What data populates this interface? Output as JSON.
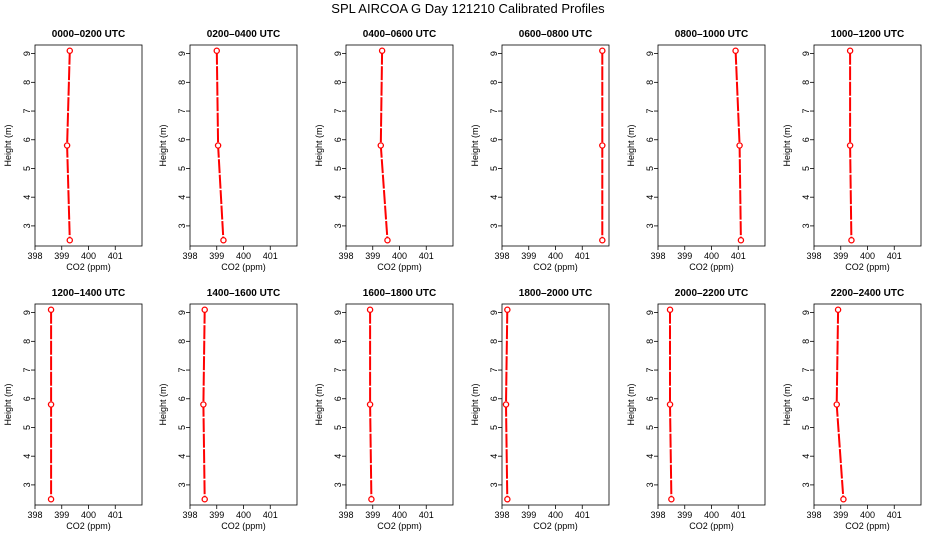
{
  "figure": {
    "title": "SPL AIRCOA G  Day 121210  Calibrated Profiles"
  },
  "chart_data": [
    {
      "type": "line",
      "title": "0000–0200 UTC",
      "xlabel": "CO2 (ppm)",
      "ylabel": "Height (m)",
      "xlim": [
        398,
        402
      ],
      "ylim": [
        2.3,
        9.3
      ],
      "x_ticks": [
        398,
        399,
        400,
        401
      ],
      "y_ticks": [
        3,
        4,
        5,
        6,
        7,
        8,
        9
      ],
      "grid": false,
      "series": [
        {
          "color": "#ff0000",
          "points": [
            {
              "x": 399.3,
              "y": 9.1
            },
            {
              "x": 399.2,
              "y": 5.8
            },
            {
              "x": 399.3,
              "y": 2.5
            }
          ]
        }
      ]
    },
    {
      "type": "line",
      "title": "0200–0400 UTC",
      "xlabel": "CO2 (ppm)",
      "ylabel": "Height (m)",
      "xlim": [
        398,
        402
      ],
      "ylim": [
        2.3,
        9.3
      ],
      "x_ticks": [
        398,
        399,
        400,
        401
      ],
      "y_ticks": [
        3,
        4,
        5,
        6,
        7,
        8,
        9
      ],
      "grid": false,
      "series": [
        {
          "color": "#ff0000",
          "points": [
            {
              "x": 399.0,
              "y": 9.1
            },
            {
              "x": 399.05,
              "y": 5.8
            },
            {
              "x": 399.25,
              "y": 2.5
            }
          ]
        }
      ]
    },
    {
      "type": "line",
      "title": "0400–0600 UTC",
      "xlabel": "CO2 (ppm)",
      "ylabel": "Height (m)",
      "xlim": [
        398,
        402
      ],
      "ylim": [
        2.3,
        9.3
      ],
      "x_ticks": [
        398,
        399,
        400,
        401
      ],
      "y_ticks": [
        3,
        4,
        5,
        6,
        7,
        8,
        9
      ],
      "grid": false,
      "series": [
        {
          "color": "#ff0000",
          "points": [
            {
              "x": 399.35,
              "y": 9.1
            },
            {
              "x": 399.3,
              "y": 5.8
            },
            {
              "x": 399.55,
              "y": 2.5
            }
          ]
        }
      ]
    },
    {
      "type": "line",
      "title": "0600–0800 UTC",
      "xlabel": "CO2 (ppm)",
      "ylabel": "Height (m)",
      "xlim": [
        398,
        402
      ],
      "ylim": [
        2.3,
        9.3
      ],
      "x_ticks": [
        398,
        399,
        400,
        401
      ],
      "y_ticks": [
        3,
        4,
        5,
        6,
        7,
        8,
        9
      ],
      "grid": false,
      "series": [
        {
          "color": "#ff0000",
          "points": [
            {
              "x": 401.75,
              "y": 9.1
            },
            {
              "x": 401.75,
              "y": 5.8
            },
            {
              "x": 401.75,
              "y": 2.5
            }
          ]
        }
      ]
    },
    {
      "type": "line",
      "title": "0800–1000 UTC",
      "xlabel": "CO2 (ppm)",
      "ylabel": "Height (m)",
      "xlim": [
        398,
        402
      ],
      "ylim": [
        2.3,
        9.3
      ],
      "x_ticks": [
        398,
        399,
        400,
        401
      ],
      "y_ticks": [
        3,
        4,
        5,
        6,
        7,
        8,
        9
      ],
      "grid": false,
      "series": [
        {
          "color": "#ff0000",
          "points": [
            {
              "x": 400.9,
              "y": 9.1
            },
            {
              "x": 401.05,
              "y": 5.8
            },
            {
              "x": 401.1,
              "y": 2.5
            }
          ]
        }
      ]
    },
    {
      "type": "line",
      "title": "1000–1200 UTC",
      "xlabel": "CO2 (ppm)",
      "ylabel": "Height (m)",
      "xlim": [
        398,
        402
      ],
      "ylim": [
        2.3,
        9.3
      ],
      "x_ticks": [
        398,
        399,
        400,
        401
      ],
      "y_ticks": [
        3,
        4,
        5,
        6,
        7,
        8,
        9
      ],
      "grid": false,
      "series": [
        {
          "color": "#ff0000",
          "points": [
            {
              "x": 399.35,
              "y": 9.1
            },
            {
              "x": 399.35,
              "y": 5.8
            },
            {
              "x": 399.4,
              "y": 2.5
            }
          ]
        }
      ]
    },
    {
      "type": "line",
      "title": "1200–1400 UTC",
      "xlabel": "CO2 (ppm)",
      "ylabel": "Height (m)",
      "xlim": [
        398,
        402
      ],
      "ylim": [
        2.3,
        9.3
      ],
      "x_ticks": [
        398,
        399,
        400,
        401
      ],
      "y_ticks": [
        3,
        4,
        5,
        6,
        7,
        8,
        9
      ],
      "grid": false,
      "series": [
        {
          "color": "#ff0000",
          "points": [
            {
              "x": 398.6,
              "y": 9.1
            },
            {
              "x": 398.6,
              "y": 5.8
            },
            {
              "x": 398.6,
              "y": 2.5
            }
          ]
        }
      ]
    },
    {
      "type": "line",
      "title": "1400–1600 UTC",
      "xlabel": "CO2 (ppm)",
      "ylabel": "Height (m)",
      "xlim": [
        398,
        402
      ],
      "ylim": [
        2.3,
        9.3
      ],
      "x_ticks": [
        398,
        399,
        400,
        401
      ],
      "y_ticks": [
        3,
        4,
        5,
        6,
        7,
        8,
        9
      ],
      "grid": false,
      "series": [
        {
          "color": "#ff0000",
          "points": [
            {
              "x": 398.55,
              "y": 9.1
            },
            {
              "x": 398.5,
              "y": 5.8
            },
            {
              "x": 398.55,
              "y": 2.5
            }
          ]
        }
      ]
    },
    {
      "type": "line",
      "title": "1600–1800 UTC",
      "xlabel": "CO2 (ppm)",
      "ylabel": "Height (m)",
      "xlim": [
        398,
        402
      ],
      "ylim": [
        2.3,
        9.3
      ],
      "x_ticks": [
        398,
        399,
        400,
        401
      ],
      "y_ticks": [
        3,
        4,
        5,
        6,
        7,
        8,
        9
      ],
      "grid": false,
      "series": [
        {
          "color": "#ff0000",
          "points": [
            {
              "x": 398.9,
              "y": 9.1
            },
            {
              "x": 398.9,
              "y": 5.8
            },
            {
              "x": 398.95,
              "y": 2.5
            }
          ]
        }
      ]
    },
    {
      "type": "line",
      "title": "1800–2000 UTC",
      "xlabel": "CO2 (ppm)",
      "ylabel": "Height (m)",
      "xlim": [
        398,
        402
      ],
      "ylim": [
        2.3,
        9.3
      ],
      "x_ticks": [
        398,
        399,
        400,
        401
      ],
      "y_ticks": [
        3,
        4,
        5,
        6,
        7,
        8,
        9
      ],
      "grid": false,
      "series": [
        {
          "color": "#ff0000",
          "points": [
            {
              "x": 398.2,
              "y": 9.1
            },
            {
              "x": 398.15,
              "y": 5.8
            },
            {
              "x": 398.2,
              "y": 2.5
            }
          ]
        }
      ]
    },
    {
      "type": "line",
      "title": "2000–2200 UTC",
      "xlabel": "CO2 (ppm)",
      "ylabel": "Height (m)",
      "xlim": [
        398,
        402
      ],
      "ylim": [
        2.3,
        9.3
      ],
      "x_ticks": [
        398,
        399,
        400,
        401
      ],
      "y_ticks": [
        3,
        4,
        5,
        6,
        7,
        8,
        9
      ],
      "grid": false,
      "series": [
        {
          "color": "#ff0000",
          "points": [
            {
              "x": 398.45,
              "y": 9.1
            },
            {
              "x": 398.45,
              "y": 5.8
            },
            {
              "x": 398.5,
              "y": 2.5
            }
          ]
        }
      ]
    },
    {
      "type": "line",
      "title": "2200–2400 UTC",
      "xlabel": "CO2 (ppm)",
      "ylabel": "Height (m)",
      "xlim": [
        398,
        402
      ],
      "ylim": [
        2.3,
        9.3
      ],
      "x_ticks": [
        398,
        399,
        400,
        401
      ],
      "y_ticks": [
        3,
        4,
        5,
        6,
        7,
        8,
        9
      ],
      "grid": false,
      "series": [
        {
          "color": "#ff0000",
          "points": [
            {
              "x": 398.9,
              "y": 9.1
            },
            {
              "x": 398.85,
              "y": 5.8
            },
            {
              "x": 399.1,
              "y": 2.5
            }
          ]
        }
      ]
    }
  ]
}
